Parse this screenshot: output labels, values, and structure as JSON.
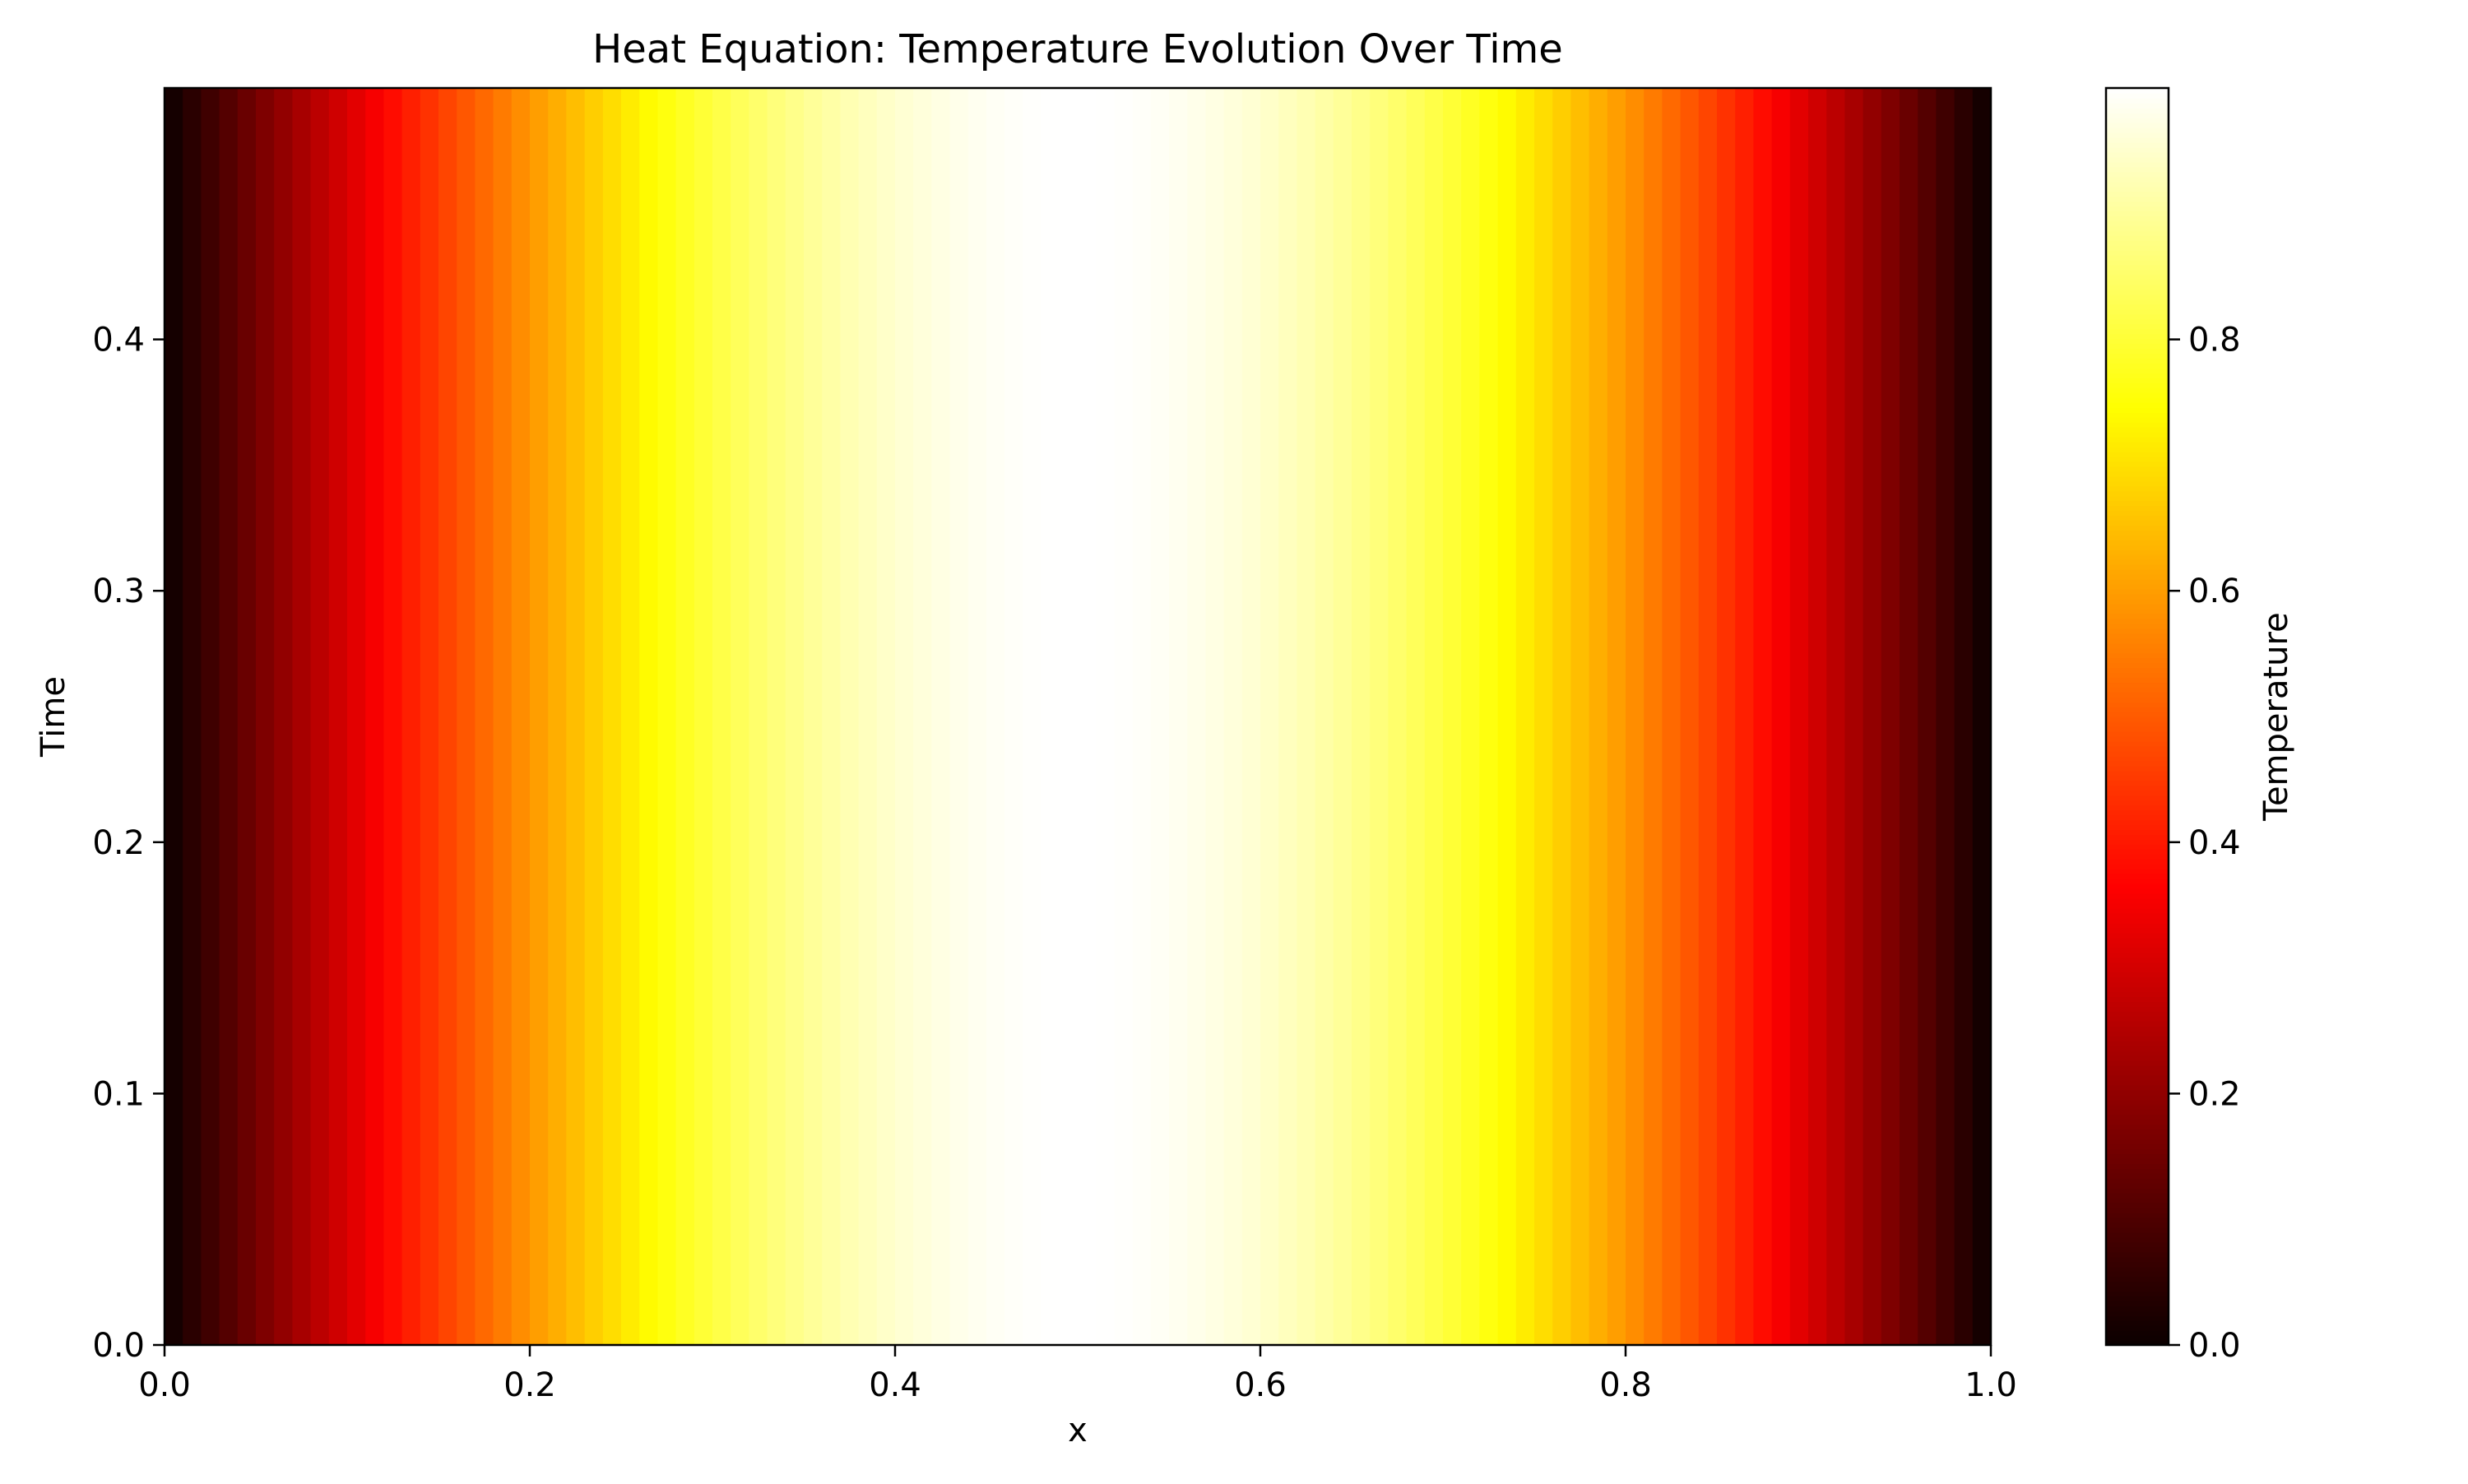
{
  "chart_data": {
    "type": "heatmap",
    "title": "Heat Equation: Temperature Evolution Over Time",
    "xlabel": "x",
    "ylabel": "Time",
    "xlim": [
      0.0,
      1.0
    ],
    "ylim": [
      0.0,
      0.5
    ],
    "x_ticks": [
      "0.0",
      "0.2",
      "0.4",
      "0.6",
      "0.8",
      "1.0"
    ],
    "y_ticks": [
      "0.0",
      "0.1",
      "0.2",
      "0.3",
      "0.4"
    ],
    "colormap": "hot",
    "colorbar": {
      "label": "Temperature",
      "range": [
        0.0,
        1.0
      ],
      "ticks": [
        "0.0",
        "0.2",
        "0.4",
        "0.6",
        "0.8"
      ]
    },
    "grid": false,
    "x_cells": 100,
    "temperature_profile": "sin(pi*x), constant over time",
    "rows": 1
  }
}
